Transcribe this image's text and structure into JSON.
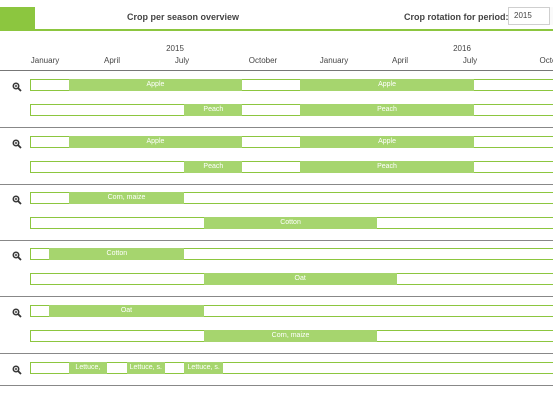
{
  "header": {
    "title": "Crop per season overview",
    "period_label": "Crop rotation for period:",
    "period_value": "2015",
    "accent_color": "#8cc63f"
  },
  "timeline": {
    "years": [
      "2015",
      "2016"
    ],
    "months": [
      "January",
      "April",
      "July",
      "October",
      "January",
      "April",
      "July",
      "Octo"
    ]
  },
  "groups": [
    {
      "zoom_icon": "magnifier-icon",
      "rows": [
        {
          "bars": [
            {
              "label": "Apple",
              "start": "2015-03",
              "end": "2015-12"
            },
            {
              "label": "Apple",
              "start": "2016-03",
              "end": "2016-12"
            }
          ]
        },
        {
          "bars": [
            {
              "label": "Peach",
              "start": "2015-09",
              "end": "2015-12"
            },
            {
              "label": "Peach",
              "start": "2016-03",
              "end": "2016-12"
            }
          ]
        }
      ]
    },
    {
      "zoom_icon": "magnifier-icon",
      "rows": [
        {
          "bars": [
            {
              "label": "Apple",
              "start": "2015-03",
              "end": "2015-12"
            },
            {
              "label": "Apple",
              "start": "2016-03",
              "end": "2016-12"
            }
          ]
        },
        {
          "bars": [
            {
              "label": "Peach",
              "start": "2015-09",
              "end": "2015-12"
            },
            {
              "label": "Peach",
              "start": "2016-03",
              "end": "2016-12"
            }
          ]
        }
      ]
    },
    {
      "zoom_icon": "magnifier-icon",
      "rows": [
        {
          "bars": [
            {
              "label": "Corn, maize",
              "start": "2015-03",
              "end": "2015-09"
            }
          ]
        },
        {
          "bars": [
            {
              "label": "Cotton",
              "start": "2015-10",
              "end": "2016-07"
            }
          ]
        }
      ]
    },
    {
      "zoom_icon": "magnifier-icon",
      "rows": [
        {
          "bars": [
            {
              "label": "Cotton",
              "start": "2015-02",
              "end": "2015-09"
            }
          ]
        },
        {
          "bars": [
            {
              "label": "Oat",
              "start": "2015-10",
              "end": "2016-08"
            }
          ]
        }
      ]
    },
    {
      "zoom_icon": "magnifier-icon",
      "rows": [
        {
          "bars": [
            {
              "label": "Oat",
              "start": "2015-02",
              "end": "2015-10"
            }
          ]
        },
        {
          "bars": [
            {
              "label": "Corn, maize",
              "start": "2015-10",
              "end": "2016-07"
            }
          ]
        }
      ]
    },
    {
      "zoom_icon": "magnifier-icon",
      "rows": [
        {
          "bars": [
            {
              "label": "Lettuce,",
              "start": "2015-03",
              "end": "2015-05"
            },
            {
              "label": "Lettuce, s.",
              "start": "2015-06",
              "end": "2015-08"
            },
            {
              "label": "Lettuce, s.",
              "start": "2015-09",
              "end": "2015-11"
            }
          ]
        }
      ]
    }
  ]
}
